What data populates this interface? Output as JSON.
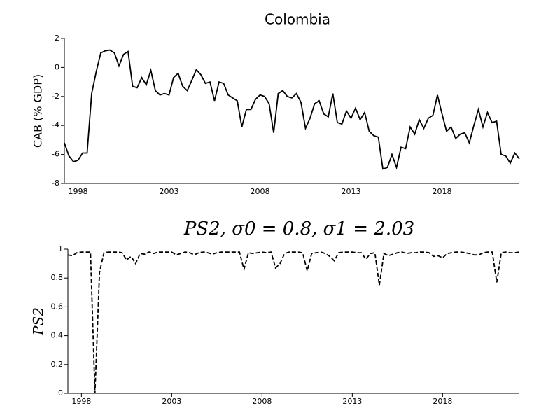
{
  "chart_data": [
    {
      "type": "line",
      "title": "Colombia",
      "ylabel": "CAB (% GDP)",
      "x": [
        1997.25,
        1997.5,
        1997.75,
        1998,
        1998.25,
        1998.5,
        1998.75,
        1999,
        1999.25,
        1999.5,
        1999.75,
        2000,
        2000.25,
        2000.5,
        2000.75,
        2001,
        2001.25,
        2001.5,
        2001.75,
        2002,
        2002.25,
        2002.5,
        2002.75,
        2003,
        2003.25,
        2003.5,
        2003.75,
        2004,
        2004.25,
        2004.5,
        2004.75,
        2005,
        2005.25,
        2005.5,
        2005.75,
        2006,
        2006.25,
        2006.5,
        2006.75,
        2007,
        2007.25,
        2007.5,
        2007.75,
        2008,
        2008.25,
        2008.5,
        2008.75,
        2009,
        2009.25,
        2009.5,
        2009.75,
        2010,
        2010.25,
        2010.5,
        2010.75,
        2011,
        2011.25,
        2011.5,
        2011.75,
        2012,
        2012.25,
        2012.5,
        2012.75,
        2013,
        2013.25,
        2013.5,
        2013.75,
        2014,
        2014.25,
        2014.5,
        2014.75,
        2015,
        2015.25,
        2015.5,
        2015.75,
        2016,
        2016.25,
        2016.5,
        2016.75,
        2017,
        2017.25,
        2017.5,
        2017.75,
        2018,
        2018.25,
        2018.5,
        2018.75,
        2019,
        2019.25,
        2019.5,
        2019.75,
        2020,
        2020.25,
        2020.5,
        2020.75,
        2021,
        2021.25,
        2021.5,
        2021.75,
        2022,
        2022.25
      ],
      "series": [
        {
          "color": "#000000",
          "dash": false,
          "values": [
            -5.2,
            -6.1,
            -6.5,
            -6.4,
            -5.9,
            -5.9,
            -1.8,
            -0.3,
            1.0,
            1.15,
            1.2,
            1.0,
            0.1,
            0.9,
            1.1,
            -1.3,
            -1.4,
            -0.7,
            -1.2,
            -0.2,
            -1.6,
            -1.9,
            -1.8,
            -1.9,
            -0.7,
            -0.4,
            -1.3,
            -1.6,
            -0.9,
            -0.15,
            -0.5,
            -1.1,
            -1.0,
            -2.3,
            -1.0,
            -1.1,
            -1.9,
            -2.1,
            -2.3,
            -4.1,
            -2.9,
            -2.9,
            -2.2,
            -1.9,
            -2.0,
            -2.5,
            -4.5,
            -1.8,
            -1.6,
            -2.0,
            -2.1,
            -1.8,
            -2.4,
            -4.2,
            -3.5,
            -2.5,
            -2.3,
            -3.2,
            -3.4,
            -1.8,
            -3.8,
            -3.9,
            -3.0,
            -3.5,
            -2.8,
            -3.6,
            -3.1,
            -4.4,
            -4.7,
            -4.8,
            -7.0,
            -6.9,
            -6.0,
            -6.9,
            -5.5,
            -5.6,
            -4.1,
            -4.6,
            -3.6,
            -4.2,
            -3.5,
            -3.3,
            -1.9,
            -3.2,
            -4.4,
            -4.1,
            -4.9,
            -4.6,
            -4.5,
            -5.2,
            -4.0,
            -2.9,
            -4.1,
            -3.1,
            -3.8,
            -3.7,
            -6.0,
            -6.1,
            -6.6,
            -5.9,
            -6.3
          ]
        }
      ],
      "xlim": [
        1997.25,
        2022.25
      ],
      "xticks": [
        1998,
        2003,
        2008,
        2013,
        2018
      ],
      "ylim": [
        -8,
        2
      ],
      "yticks": [
        -8,
        -6,
        -4,
        -2,
        0,
        2
      ]
    },
    {
      "type": "line",
      "title": "PS2, σ0 = 0.8, σ1 = 2.03",
      "ylabel": "PS2",
      "x": [
        1997.25,
        1997.5,
        1997.75,
        1998,
        1998.25,
        1998.5,
        1998.75,
        1999,
        1999.25,
        1999.5,
        1999.75,
        2000,
        2000.25,
        2000.5,
        2000.75,
        2001,
        2001.25,
        2001.5,
        2001.75,
        2002,
        2002.25,
        2002.5,
        2002.75,
        2003,
        2003.25,
        2003.5,
        2003.75,
        2004,
        2004.25,
        2004.5,
        2004.75,
        2005,
        2005.25,
        2005.5,
        2005.75,
        2006,
        2006.25,
        2006.5,
        2006.75,
        2007,
        2007.25,
        2007.5,
        2007.75,
        2008,
        2008.25,
        2008.5,
        2008.75,
        2009,
        2009.25,
        2009.5,
        2009.75,
        2010,
        2010.25,
        2010.5,
        2010.75,
        2011,
        2011.25,
        2011.5,
        2011.75,
        2012,
        2012.25,
        2012.5,
        2012.75,
        2013,
        2013.25,
        2013.5,
        2013.75,
        2014,
        2014.25,
        2014.5,
        2014.75,
        2015,
        2015.25,
        2015.5,
        2015.75,
        2016,
        2016.25,
        2016.5,
        2016.75,
        2017,
        2017.25,
        2017.5,
        2017.75,
        2018,
        2018.25,
        2018.5,
        2018.75,
        2019,
        2019.25,
        2019.5,
        2019.75,
        2020,
        2020.25,
        2020.5,
        2020.75,
        2021,
        2021.25,
        2021.5,
        2021.75,
        2022,
        2022.25
      ],
      "series": [
        {
          "color": "#000000",
          "dash": true,
          "values": [
            0.96,
            0.955,
            0.975,
            0.98,
            0.98,
            0.98,
            0,
            0.84,
            0.975,
            0.98,
            0.98,
            0.98,
            0.975,
            0.925,
            0.95,
            0.9,
            0.97,
            0.965,
            0.98,
            0.97,
            0.98,
            0.98,
            0.98,
            0.98,
            0.96,
            0.97,
            0.98,
            0.975,
            0.96,
            0.975,
            0.98,
            0.975,
            0.965,
            0.975,
            0.98,
            0.98,
            0.98,
            0.98,
            0.98,
            0.86,
            0.975,
            0.97,
            0.975,
            0.98,
            0.975,
            0.98,
            0.87,
            0.9,
            0.97,
            0.98,
            0.98,
            0.98,
            0.975,
            0.85,
            0.97,
            0.975,
            0.98,
            0.97,
            0.95,
            0.92,
            0.975,
            0.98,
            0.98,
            0.98,
            0.975,
            0.975,
            0.93,
            0.97,
            0.975,
            0.75,
            0.97,
            0.955,
            0.965,
            0.975,
            0.98,
            0.97,
            0.975,
            0.975,
            0.98,
            0.98,
            0.975,
            0.95,
            0.955,
            0.94,
            0.97,
            0.975,
            0.98,
            0.98,
            0.975,
            0.97,
            0.96,
            0.96,
            0.975,
            0.98,
            0.98,
            0.77,
            0.975,
            0.98,
            0.975,
            0.975,
            0.98
          ]
        }
      ],
      "xlim": [
        1997.25,
        2022.25
      ],
      "xticks": [
        1998,
        2003,
        2008,
        2013,
        2018
      ],
      "ylim": [
        0,
        1
      ],
      "yticks": [
        0,
        0.2,
        0.4,
        0.6,
        0.8,
        1
      ]
    }
  ]
}
